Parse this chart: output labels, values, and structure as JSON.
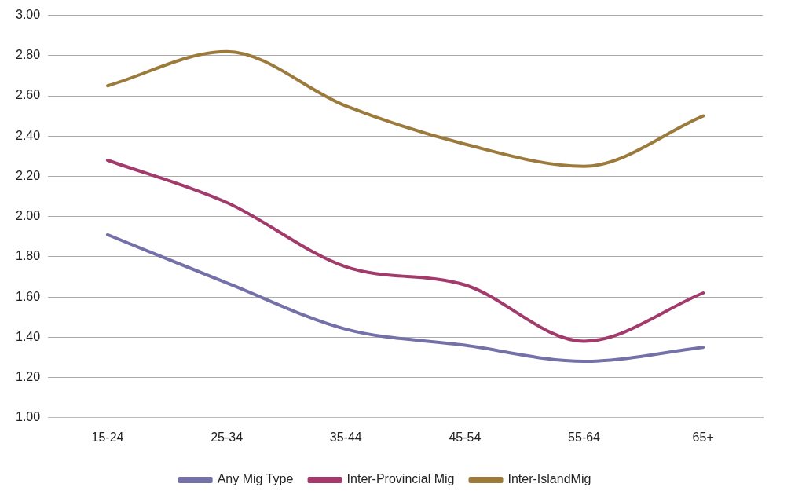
{
  "chart_data": {
    "type": "line",
    "categories": [
      "15-24",
      "25-34",
      "35-44",
      "45-54",
      "55-64",
      "65+"
    ],
    "series": [
      {
        "name": "Any Mig Type",
        "color": "#7470a8",
        "values": [
          1.91,
          1.67,
          1.44,
          1.36,
          1.28,
          1.35
        ]
      },
      {
        "name": "Inter-Provincial Mig",
        "color": "#a23a6b",
        "values": [
          2.28,
          2.07,
          1.75,
          1.66,
          1.38,
          1.62
        ]
      },
      {
        "name": "Inter-IslandMig",
        "color": "#9c7a3c",
        "values": [
          2.65,
          2.82,
          2.55,
          2.36,
          2.25,
          2.5
        ]
      }
    ],
    "ylim": [
      1,
      3
    ],
    "yticks": [
      {
        "value": 1,
        "label": "1.00"
      },
      {
        "value": 1.2,
        "label": "1.20"
      },
      {
        "value": 1.4,
        "label": "1.40"
      },
      {
        "value": 1.6,
        "label": "1.60"
      },
      {
        "value": 1.8,
        "label": "1.80"
      },
      {
        "value": 2,
        "label": "2.00"
      },
      {
        "value": 2.2,
        "label": "2.20"
      },
      {
        "value": 2.4,
        "label": "2.40"
      },
      {
        "value": 2.6,
        "label": "2.60"
      },
      {
        "value": 2.8,
        "label": "2.80"
      },
      {
        "value": 3,
        "label": "3.00"
      }
    ],
    "grid": "y",
    "legend": "bottom",
    "marker": "none",
    "line_style": "solid"
  }
}
